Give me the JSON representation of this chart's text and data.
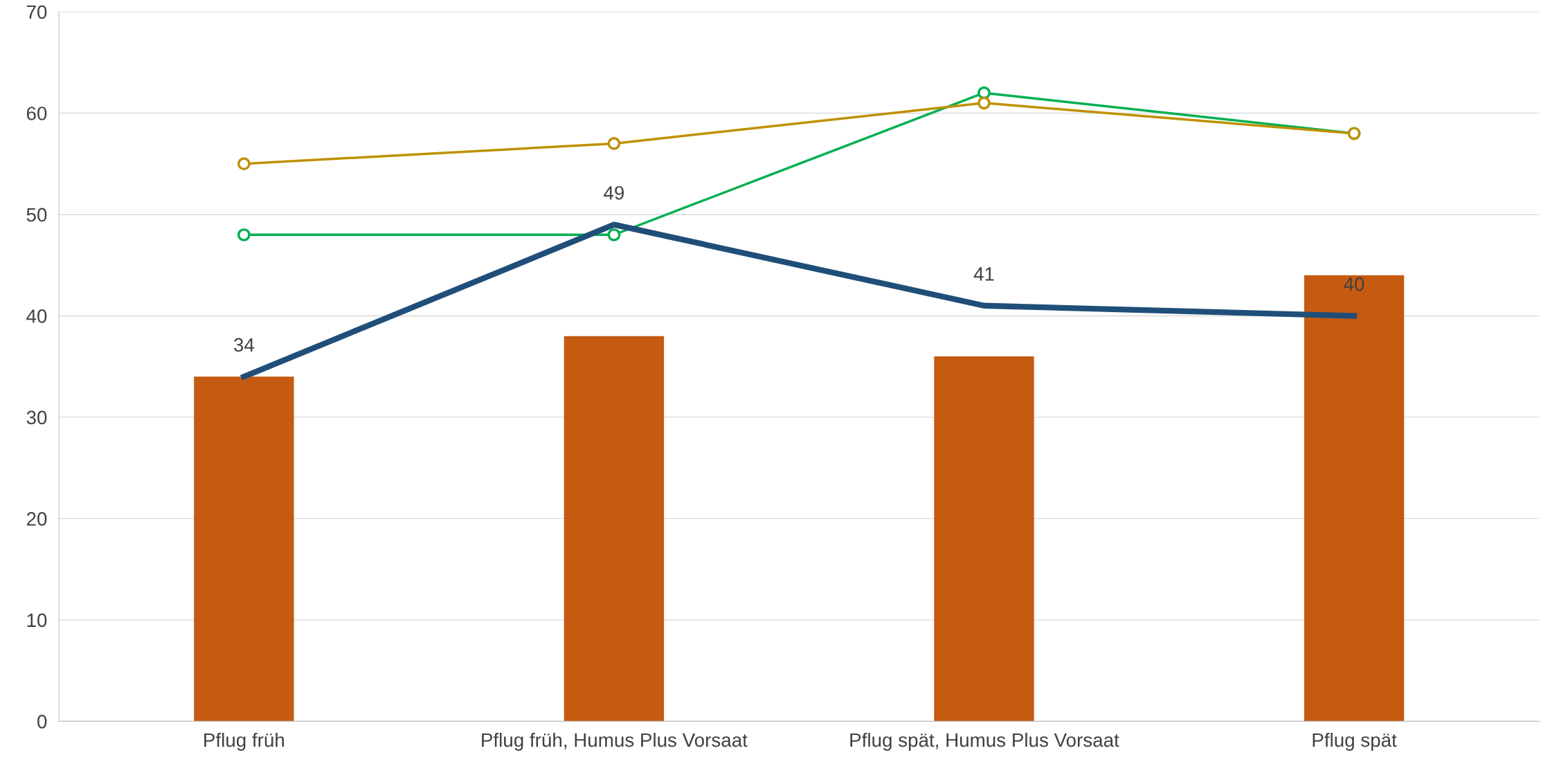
{
  "chart_data": {
    "type": "bar",
    "categories": [
      "Pflug früh",
      "Pflug früh, Humus Plus Vorsaat",
      "Pflug spät, Humus Plus Vorsaat",
      "Pflug spät"
    ],
    "series": [
      {
        "color": "#c55a11",
        "values": [
          34,
          38,
          36,
          44
        ]
      },
      {
        "type": "line",
        "color": "#1f4e79",
        "values": [
          34,
          49,
          41,
          40
        ],
        "data_labels": true,
        "marker": "none"
      },
      {
        "type": "line",
        "color": "#00b050",
        "values": [
          48,
          48,
          62,
          58
        ],
        "marker": "circle"
      },
      {
        "type": "line",
        "color": "#bf9000",
        "values": [
          55,
          57,
          61,
          58
        ],
        "marker": "circle"
      }
    ],
    "ylim": [
      0,
      70
    ],
    "yticks": [
      0,
      10,
      20,
      30,
      40,
      50,
      60,
      70
    ],
    "grid": "y"
  }
}
